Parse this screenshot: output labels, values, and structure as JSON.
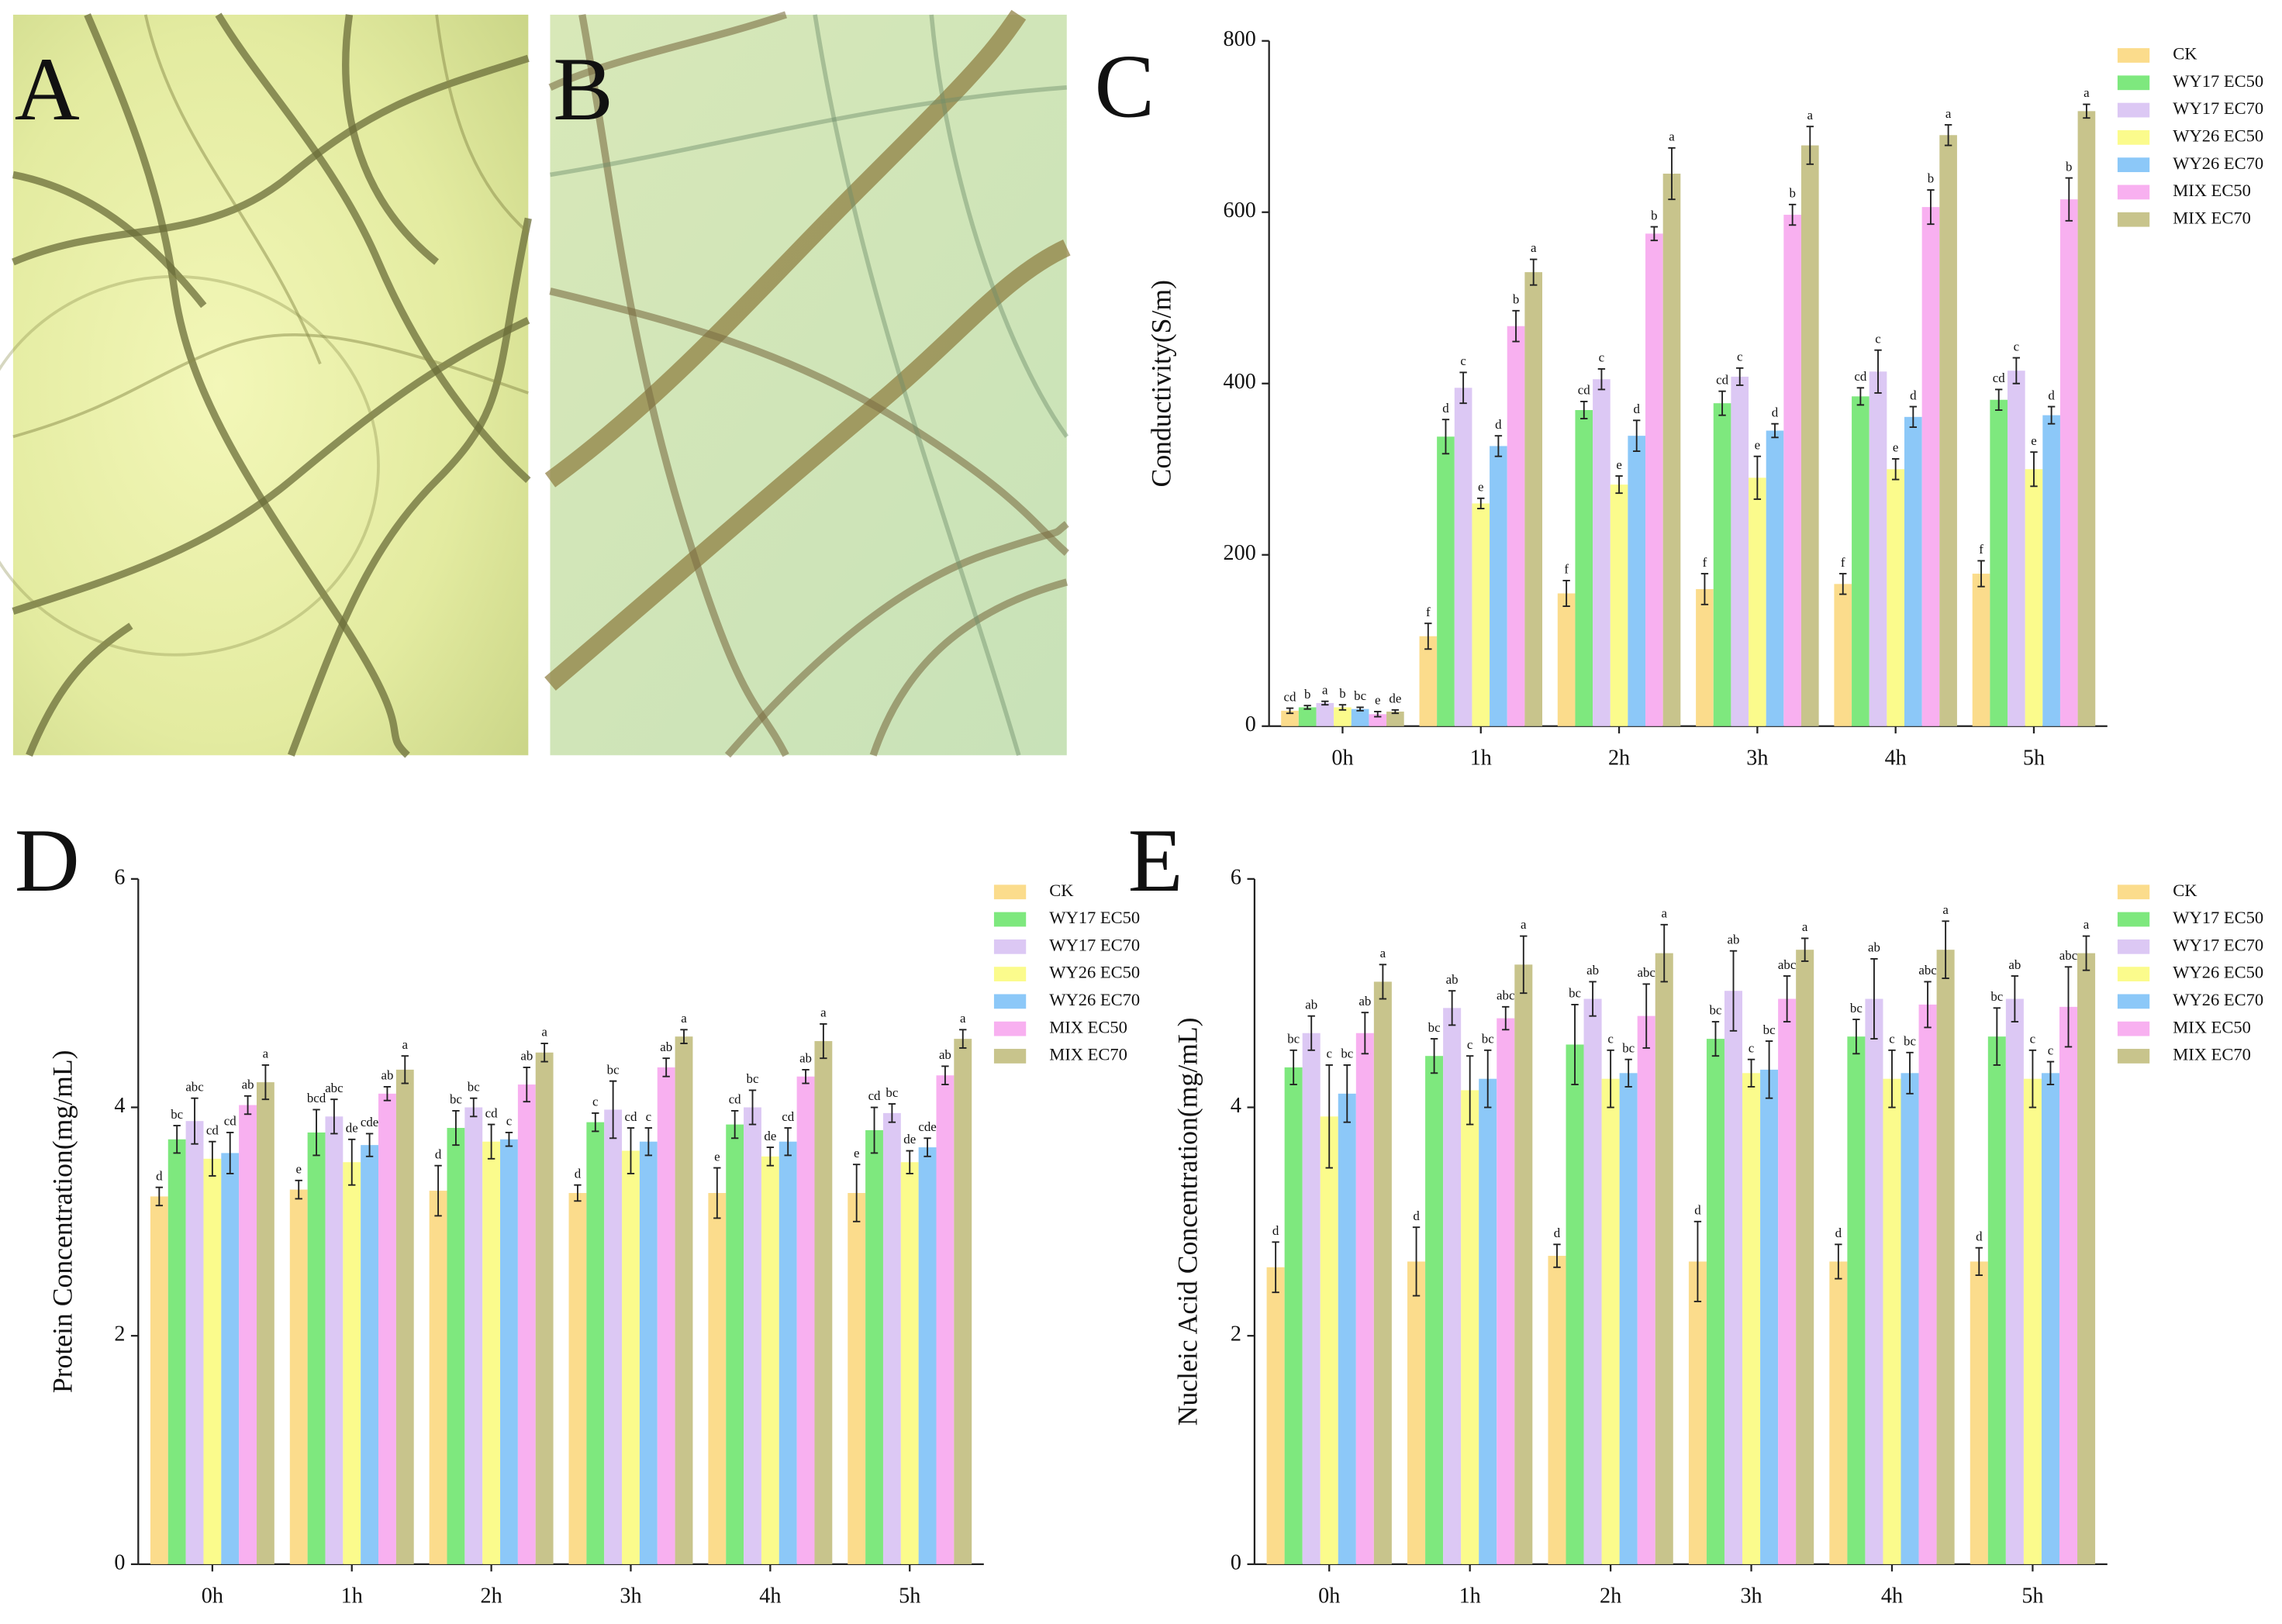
{
  "images": [
    {
      "label": "A"
    },
    {
      "label": "B"
    }
  ],
  "chart_data": [
    {
      "type": "bar",
      "panel_label": "C",
      "y_label": "Conductivity(S/m)",
      "categories": [
        "0h",
        "1h",
        "2h",
        "3h",
        "4h",
        "5h"
      ],
      "ylim": [
        0,
        800
      ],
      "yticks": [
        0,
        200,
        400,
        600,
        800
      ],
      "series": [
        {
          "name": "CK",
          "color": "#fbdc8c",
          "values": [
            18,
            105,
            155,
            160,
            166,
            178
          ],
          "errors": [
            3,
            15,
            15,
            18,
            12,
            15
          ],
          "letters": [
            "cd",
            "f",
            "f",
            "f",
            "f",
            "f"
          ]
        },
        {
          "name": "WY17 EC50",
          "color": "#7ee87e",
          "values": [
            22,
            338,
            369,
            377,
            385,
            381
          ],
          "errors": [
            2,
            20,
            10,
            14,
            10,
            12
          ],
          "letters": [
            "b",
            "d",
            "cd",
            "cd",
            "cd",
            "cd"
          ]
        },
        {
          "name": "WY17 EC70",
          "color": "#dcc8f4",
          "values": [
            27,
            395,
            405,
            408,
            414,
            415
          ],
          "errors": [
            2,
            18,
            12,
            10,
            25,
            15
          ],
          "letters": [
            "a",
            "c",
            "c",
            "c",
            "c",
            "c"
          ]
        },
        {
          "name": "WY26 EC50",
          "color": "#fbfb8c",
          "values": [
            22,
            260,
            282,
            290,
            300,
            300
          ],
          "errors": [
            3,
            6,
            10,
            25,
            12,
            20
          ],
          "letters": [
            "b",
            "e",
            "e",
            "e",
            "e",
            "e"
          ]
        },
        {
          "name": "WY26 EC70",
          "color": "#8cc8f8",
          "values": [
            20,
            327,
            339,
            345,
            361,
            363
          ],
          "errors": [
            2,
            12,
            18,
            8,
            12,
            10
          ],
          "letters": [
            "bc",
            "d",
            "d",
            "d",
            "d",
            "d"
          ]
        },
        {
          "name": "MIX EC50",
          "color": "#f8b0f0",
          "values": [
            14,
            467,
            575,
            597,
            606,
            615
          ],
          "errors": [
            3,
            18,
            8,
            12,
            20,
            25
          ],
          "letters": [
            "e",
            "b",
            "b",
            "b",
            "b",
            "b"
          ]
        },
        {
          "name": "MIX EC70",
          "color": "#c8c48c",
          "values": [
            17,
            530,
            645,
            678,
            690,
            718
          ],
          "errors": [
            2,
            15,
            30,
            22,
            12,
            8
          ],
          "letters": [
            "de",
            "a",
            "a",
            "a",
            "a",
            "a"
          ]
        }
      ]
    },
    {
      "type": "bar",
      "panel_label": "D",
      "y_label": "Protein Concentration(mg/mL)",
      "categories": [
        "0h",
        "1h",
        "2h",
        "3h",
        "4h",
        "5h"
      ],
      "ylim": [
        0,
        6
      ],
      "yticks": [
        0,
        2,
        4,
        6
      ],
      "series": [
        {
          "name": "CK",
          "color": "#fbdc8c",
          "values": [
            3.22,
            3.28,
            3.27,
            3.25,
            3.25,
            3.25
          ],
          "errors": [
            0.08,
            0.08,
            0.22,
            0.07,
            0.22,
            0.25
          ],
          "letters": [
            "d",
            "e",
            "d",
            "d",
            "e",
            "e"
          ]
        },
        {
          "name": "WY17 EC50",
          "color": "#7ee87e",
          "values": [
            3.72,
            3.78,
            3.82,
            3.87,
            3.85,
            3.8
          ],
          "errors": [
            0.12,
            0.2,
            0.15,
            0.08,
            0.12,
            0.2
          ],
          "letters": [
            "bc",
            "bcd",
            "bc",
            "c",
            "cd",
            "cd"
          ]
        },
        {
          "name": "WY17 EC70",
          "color": "#dcc8f4",
          "values": [
            3.88,
            3.92,
            4.0,
            3.98,
            4.0,
            3.95
          ],
          "errors": [
            0.2,
            0.15,
            0.08,
            0.25,
            0.15,
            0.08
          ],
          "letters": [
            "abc",
            "abc",
            "bc",
            "bc",
            "bc",
            "bc"
          ]
        },
        {
          "name": "WY26 EC50",
          "color": "#fbfb8c",
          "values": [
            3.55,
            3.52,
            3.7,
            3.62,
            3.57,
            3.52
          ],
          "errors": [
            0.15,
            0.2,
            0.15,
            0.2,
            0.08,
            0.1
          ],
          "letters": [
            "cd",
            "de",
            "cd",
            "cd",
            "de",
            "de"
          ]
        },
        {
          "name": "WY26 EC70",
          "color": "#8cc8f8",
          "values": [
            3.6,
            3.67,
            3.72,
            3.7,
            3.7,
            3.65
          ],
          "errors": [
            0.18,
            0.1,
            0.06,
            0.12,
            0.12,
            0.08
          ],
          "letters": [
            "cd",
            "cde",
            "c",
            "c",
            "cd",
            "cde"
          ]
        },
        {
          "name": "MIX EC50",
          "color": "#f8b0f0",
          "values": [
            4.02,
            4.12,
            4.2,
            4.35,
            4.27,
            4.28
          ],
          "errors": [
            0.08,
            0.06,
            0.15,
            0.08,
            0.06,
            0.08
          ],
          "letters": [
            "ab",
            "ab",
            "ab",
            "ab",
            "ab",
            "ab"
          ]
        },
        {
          "name": "MIX EC70",
          "color": "#c8c48c",
          "values": [
            4.22,
            4.33,
            4.48,
            4.62,
            4.58,
            4.6
          ],
          "errors": [
            0.15,
            0.12,
            0.08,
            0.06,
            0.15,
            0.08
          ],
          "letters": [
            "a",
            "a",
            "a",
            "a",
            "a",
            "a"
          ]
        }
      ]
    },
    {
      "type": "bar",
      "panel_label": "E",
      "y_label": "Nucleic Acid Concentration(mg/mL)",
      "categories": [
        "0h",
        "1h",
        "2h",
        "3h",
        "4h",
        "5h"
      ],
      "ylim": [
        0,
        6
      ],
      "yticks": [
        0,
        2,
        4,
        6
      ],
      "series": [
        {
          "name": "CK",
          "color": "#fbdc8c",
          "values": [
            2.6,
            2.65,
            2.7,
            2.65,
            2.65,
            2.65
          ],
          "errors": [
            0.22,
            0.3,
            0.1,
            0.35,
            0.15,
            0.12
          ],
          "letters": [
            "d",
            "d",
            "d",
            "d",
            "d",
            "d"
          ]
        },
        {
          "name": "WY17 EC50",
          "color": "#7ee87e",
          "values": [
            4.35,
            4.45,
            4.55,
            4.6,
            4.62,
            4.62
          ],
          "errors": [
            0.15,
            0.15,
            0.35,
            0.15,
            0.15,
            0.25
          ],
          "letters": [
            "bc",
            "bc",
            "bc",
            "bc",
            "bc",
            "bc"
          ]
        },
        {
          "name": "WY17 EC70",
          "color": "#dcc8f4",
          "values": [
            4.65,
            4.87,
            4.95,
            5.02,
            4.95,
            4.95
          ],
          "errors": [
            0.15,
            0.15,
            0.15,
            0.35,
            0.35,
            0.2
          ],
          "letters": [
            "ab",
            "ab",
            "ab",
            "ab",
            "ab",
            "ab"
          ]
        },
        {
          "name": "WY26 EC50",
          "color": "#fbfb8c",
          "values": [
            3.92,
            4.15,
            4.25,
            4.3,
            4.25,
            4.25
          ],
          "errors": [
            0.45,
            0.3,
            0.25,
            0.12,
            0.25,
            0.25
          ],
          "letters": [
            "c",
            "c",
            "c",
            "c",
            "c",
            "c"
          ]
        },
        {
          "name": "WY26 EC70",
          "color": "#8cc8f8",
          "values": [
            4.12,
            4.25,
            4.3,
            4.33,
            4.3,
            4.3
          ],
          "errors": [
            0.25,
            0.25,
            0.12,
            0.25,
            0.18,
            0.1
          ],
          "letters": [
            "bc",
            "bc",
            "bc",
            "bc",
            "bc",
            "c"
          ]
        },
        {
          "name": "MIX EC50",
          "color": "#f8b0f0",
          "values": [
            4.65,
            4.78,
            4.8,
            4.95,
            4.9,
            4.88
          ],
          "errors": [
            0.18,
            0.1,
            0.28,
            0.2,
            0.2,
            0.35
          ],
          "letters": [
            "ab",
            "abc",
            "abc",
            "abc",
            "abc",
            "abc"
          ]
        },
        {
          "name": "MIX EC70",
          "color": "#c8c48c",
          "values": [
            5.1,
            5.25,
            5.35,
            5.38,
            5.38,
            5.35
          ],
          "errors": [
            0.15,
            0.25,
            0.25,
            0.1,
            0.25,
            0.15
          ],
          "letters": [
            "a",
            "a",
            "a",
            "a",
            "a",
            "a"
          ]
        }
      ]
    }
  ]
}
